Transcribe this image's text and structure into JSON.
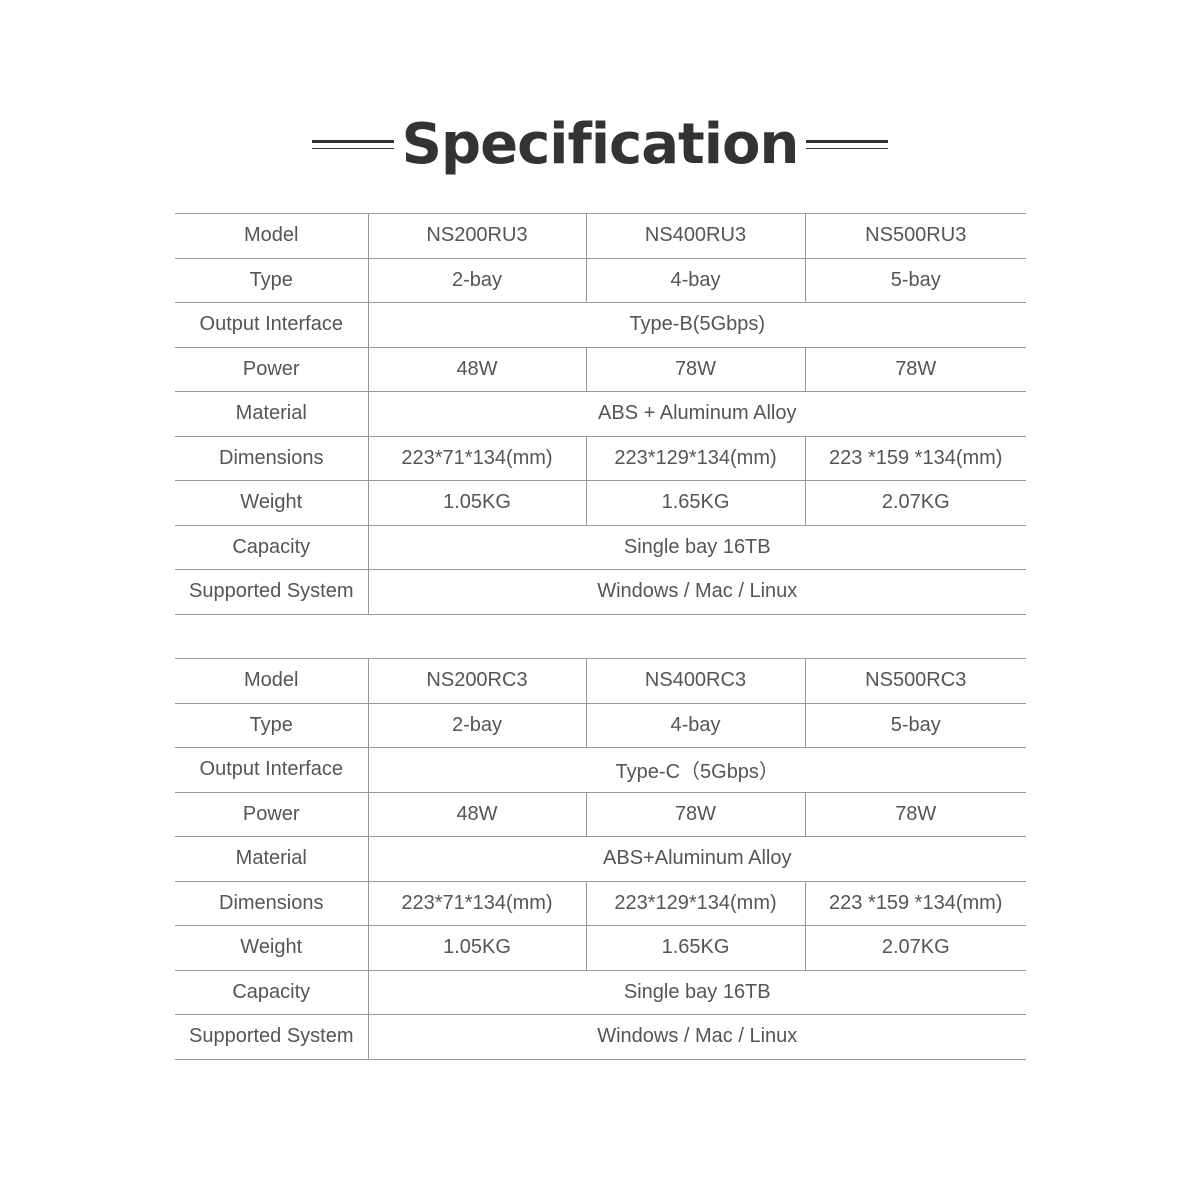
{
  "title": "Specification",
  "tables": [
    {
      "rows": [
        {
          "label": "Model",
          "cells": [
            "NS200RU3",
            "NS400RU3",
            "NS500RU3"
          ]
        },
        {
          "label": "Type",
          "cells": [
            "2-bay",
            "4-bay",
            "5-bay"
          ]
        },
        {
          "label": "Output Interface",
          "cells": [
            "Type-B(5Gbps)"
          ]
        },
        {
          "label": "Power",
          "cells": [
            "48W",
            "78W",
            "78W"
          ]
        },
        {
          "label": "Material",
          "cells": [
            "ABS + Aluminum Alloy"
          ]
        },
        {
          "label": "Dimensions",
          "cells": [
            "223*71*134(mm)",
            "223*129*134(mm)",
            "223 *159 *134(mm)"
          ]
        },
        {
          "label": "Weight",
          "cells": [
            "1.05KG",
            "1.65KG",
            "2.07KG"
          ]
        },
        {
          "label": "Capacity",
          "cells": [
            "Single bay 16TB"
          ]
        },
        {
          "label": "Supported System",
          "cells": [
            "Windows / Mac / Linux"
          ]
        }
      ]
    },
    {
      "rows": [
        {
          "label": "Model",
          "cells": [
            "NS200RC3",
            "NS400RC3",
            "NS500RC3"
          ]
        },
        {
          "label": "Type",
          "cells": [
            "2-bay",
            "4-bay",
            "5-bay"
          ]
        },
        {
          "label": "Output Interface",
          "cells": [
            "Type-C（5Gbps）"
          ]
        },
        {
          "label": "Power",
          "cells": [
            "48W",
            "78W",
            "78W"
          ]
        },
        {
          "label": "Material",
          "cells": [
            "ABS+Aluminum Alloy"
          ]
        },
        {
          "label": "Dimensions",
          "cells": [
            "223*71*134(mm)",
            "223*129*134(mm)",
            "223 *159 *134(mm)"
          ]
        },
        {
          "label": "Weight",
          "cells": [
            "1.05KG",
            "1.65KG",
            "2.07KG"
          ]
        },
        {
          "label": "Capacity",
          "cells": [
            "Single bay 16TB"
          ]
        },
        {
          "label": "Supported System",
          "cells": [
            "Windows / Mac / Linux"
          ]
        }
      ]
    }
  ]
}
